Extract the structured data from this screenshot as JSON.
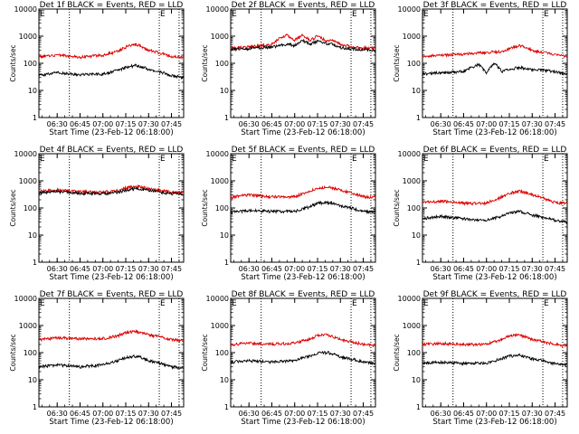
{
  "figure": {
    "black_color": "#000000",
    "red_color": "#dd0000",
    "common": {
      "ylabel": "Counts/sec",
      "xlabel": "Start Time (23-Feb-12 06:18:00)",
      "x_ticks": [
        "06:30",
        "06:45",
        "07:00",
        "07:15",
        "07:30",
        "07:45"
      ],
      "y_ticks": [
        "1",
        "10",
        "100",
        "1000",
        "10000"
      ],
      "marker_label": "E"
    }
  },
  "chart_data": [
    {
      "type": "line",
      "title": "Det 1f BLACK = Events, RED = LLD",
      "xlabel": "Start Time (23-Feb-12 06:18:00)",
      "ylabel": "Counts/sec",
      "x_range": [
        "06:18",
        "07:53"
      ],
      "ylim": [
        1,
        10000
      ],
      "y_scale": "log",
      "vlines": [
        "06:38",
        "07:37",
        "07:50"
      ],
      "series": [
        {
          "role": "events",
          "color": "#000000",
          "x": [
            "06:18",
            "06:30",
            "06:45",
            "07:00",
            "07:10",
            "07:15",
            "07:22",
            "07:30",
            "07:45",
            "07:53"
          ],
          "values": [
            35,
            45,
            38,
            40,
            55,
            70,
            85,
            60,
            35,
            30
          ]
        },
        {
          "role": "lld",
          "color": "#dd0000",
          "x": [
            "06:18",
            "06:30",
            "06:45",
            "07:00",
            "07:10",
            "07:15",
            "07:22",
            "07:30",
            "07:45",
            "07:53"
          ],
          "values": [
            170,
            200,
            170,
            200,
            280,
            400,
            500,
            300,
            180,
            160
          ]
        }
      ]
    },
    {
      "type": "line",
      "title": "Det 2f BLACK = Events, RED = LLD",
      "xlabel": "Start Time (23-Feb-12 06:18:00)",
      "ylabel": "Counts/sec",
      "x_range": [
        "06:18",
        "07:53"
      ],
      "ylim": [
        1,
        10000
      ],
      "y_scale": "log",
      "vlines": [
        "06:38",
        "07:37",
        "07:50"
      ],
      "series": [
        {
          "role": "events",
          "color": "#000000",
          "x": [
            "06:18",
            "06:30",
            "06:45",
            "06:55",
            "07:00",
            "07:05",
            "07:10",
            "07:15",
            "07:20",
            "07:25",
            "07:30",
            "07:40",
            "07:53"
          ],
          "values": [
            320,
            350,
            400,
            500,
            450,
            700,
            500,
            650,
            550,
            500,
            380,
            330,
            300
          ]
        },
        {
          "role": "lld",
          "color": "#dd0000",
          "x": [
            "06:18",
            "06:30",
            "06:45",
            "06:55",
            "07:00",
            "07:05",
            "07:10",
            "07:15",
            "07:20",
            "07:25",
            "07:30",
            "07:40",
            "07:53"
          ],
          "values": [
            360,
            400,
            500,
            1100,
            700,
            1100,
            700,
            1000,
            700,
            700,
            500,
            380,
            360
          ]
        }
      ]
    },
    {
      "type": "line",
      "title": "Det 3f BLACK = Events, RED = LLD",
      "xlabel": "Start Time (23-Feb-12 06:18:00)",
      "ylabel": "Counts/sec",
      "x_range": [
        "06:18",
        "07:53"
      ],
      "ylim": [
        1,
        10000
      ],
      "y_scale": "log",
      "vlines": [
        "06:38",
        "07:37",
        "07:50"
      ],
      "series": [
        {
          "role": "events",
          "color": "#000000",
          "x": [
            "06:18",
            "06:30",
            "06:45",
            "06:55",
            "07:00",
            "07:05",
            "07:10",
            "07:15",
            "07:22",
            "07:30",
            "07:45",
            "07:53"
          ],
          "values": [
            40,
            45,
            50,
            90,
            40,
            100,
            50,
            60,
            70,
            60,
            50,
            40
          ]
        },
        {
          "role": "lld",
          "color": "#dd0000",
          "x": [
            "06:18",
            "06:30",
            "06:45",
            "06:55",
            "07:00",
            "07:05",
            "07:10",
            "07:15",
            "07:22",
            "07:30",
            "07:45",
            "07:53"
          ],
          "values": [
            180,
            200,
            220,
            250,
            240,
            270,
            260,
            350,
            450,
            300,
            200,
            180
          ]
        }
      ]
    },
    {
      "type": "line",
      "title": "Det 4f BLACK = Events, RED = LLD",
      "xlabel": "Start Time (23-Feb-12 06:18:00)",
      "ylabel": "Counts/sec",
      "x_range": [
        "06:18",
        "07:53"
      ],
      "ylim": [
        1,
        10000
      ],
      "y_scale": "log",
      "vlines": [
        "06:38",
        "07:37",
        "07:50"
      ],
      "series": [
        {
          "role": "events",
          "color": "#000000",
          "x": [
            "06:18",
            "06:30",
            "06:45",
            "07:00",
            "07:10",
            "07:15",
            "07:22",
            "07:30",
            "07:45",
            "07:53"
          ],
          "values": [
            360,
            400,
            350,
            330,
            380,
            450,
            520,
            450,
            340,
            330
          ]
        },
        {
          "role": "lld",
          "color": "#dd0000",
          "x": [
            "06:18",
            "06:30",
            "06:45",
            "07:00",
            "07:10",
            "07:15",
            "07:22",
            "07:30",
            "07:45",
            "07:53"
          ],
          "values": [
            400,
            460,
            400,
            380,
            450,
            550,
            650,
            520,
            380,
            370
          ]
        }
      ]
    },
    {
      "type": "line",
      "title": "Det 5f BLACK = Events, RED = LLD",
      "xlabel": "Start Time (23-Feb-12 06:18:00)",
      "ylabel": "Counts/sec",
      "x_range": [
        "06:18",
        "07:53"
      ],
      "ylim": [
        1,
        10000
      ],
      "y_scale": "log",
      "vlines": [
        "06:38",
        "07:37",
        "07:50"
      ],
      "series": [
        {
          "role": "events",
          "color": "#000000",
          "x": [
            "06:18",
            "06:30",
            "06:45",
            "07:00",
            "07:10",
            "07:15",
            "07:22",
            "07:30",
            "07:45",
            "07:53"
          ],
          "values": [
            70,
            80,
            75,
            75,
            110,
            150,
            160,
            120,
            75,
            70
          ]
        },
        {
          "role": "lld",
          "color": "#dd0000",
          "x": [
            "06:18",
            "06:30",
            "06:45",
            "07:00",
            "07:10",
            "07:15",
            "07:22",
            "07:30",
            "07:45",
            "07:53"
          ],
          "values": [
            250,
            300,
            260,
            260,
            400,
            550,
            600,
            450,
            260,
            250
          ]
        }
      ]
    },
    {
      "type": "line",
      "title": "Det 6f BLACK = Events, RED = LLD",
      "xlabel": "Start Time (23-Feb-12 06:18:00)",
      "ylabel": "Counts/sec",
      "x_range": [
        "06:18",
        "07:53"
      ],
      "ylim": [
        1,
        10000
      ],
      "y_scale": "log",
      "vlines": [
        "06:38",
        "07:37",
        "07:50"
      ],
      "series": [
        {
          "role": "events",
          "color": "#000000",
          "x": [
            "06:18",
            "06:30",
            "06:45",
            "07:00",
            "07:10",
            "07:15",
            "07:22",
            "07:30",
            "07:45",
            "07:53"
          ],
          "values": [
            40,
            50,
            40,
            35,
            50,
            65,
            75,
            55,
            35,
            30
          ]
        },
        {
          "role": "lld",
          "color": "#dd0000",
          "x": [
            "06:18",
            "06:30",
            "06:45",
            "07:00",
            "07:10",
            "07:15",
            "07:22",
            "07:30",
            "07:45",
            "07:53"
          ],
          "values": [
            160,
            180,
            150,
            150,
            250,
            350,
            420,
            300,
            160,
            150
          ]
        }
      ]
    },
    {
      "type": "line",
      "title": "Det 7f BLACK = Events, RED = LLD",
      "xlabel": "Start Time (23-Feb-12 06:18:00)",
      "ylabel": "Counts/sec",
      "x_range": [
        "06:18",
        "07:53"
      ],
      "ylim": [
        1,
        10000
      ],
      "y_scale": "log",
      "vlines": [
        "06:38",
        "07:37",
        "07:50"
      ],
      "series": [
        {
          "role": "events",
          "color": "#000000",
          "x": [
            "06:18",
            "06:30",
            "06:45",
            "07:00",
            "07:10",
            "07:15",
            "07:22",
            "07:30",
            "07:45",
            "07:53"
          ],
          "values": [
            30,
            35,
            30,
            35,
            50,
            65,
            75,
            50,
            30,
            28
          ]
        },
        {
          "role": "lld",
          "color": "#dd0000",
          "x": [
            "06:18",
            "06:30",
            "06:45",
            "07:00",
            "07:10",
            "07:15",
            "07:22",
            "07:30",
            "07:45",
            "07:53"
          ],
          "values": [
            300,
            350,
            320,
            330,
            420,
            550,
            600,
            450,
            300,
            280
          ]
        }
      ]
    },
    {
      "type": "line",
      "title": "Det 8f BLACK = Events, RED = LLD",
      "xlabel": "Start Time (23-Feb-12 06:18:00)",
      "ylabel": "Counts/sec",
      "x_range": [
        "06:18",
        "07:53"
      ],
      "ylim": [
        1,
        10000
      ],
      "y_scale": "log",
      "vlines": [
        "06:38",
        "07:37",
        "07:50"
      ],
      "series": [
        {
          "role": "events",
          "color": "#000000",
          "x": [
            "06:18",
            "06:30",
            "06:45",
            "07:00",
            "07:10",
            "07:15",
            "07:22",
            "07:30",
            "07:45",
            "07:53"
          ],
          "values": [
            45,
            50,
            45,
            50,
            75,
            95,
            100,
            70,
            45,
            40
          ]
        },
        {
          "role": "lld",
          "color": "#dd0000",
          "x": [
            "06:18",
            "06:30",
            "06:45",
            "07:00",
            "07:10",
            "07:15",
            "07:22",
            "07:30",
            "07:45",
            "07:53"
          ],
          "values": [
            200,
            220,
            210,
            220,
            320,
            430,
            450,
            300,
            200,
            180
          ]
        }
      ]
    },
    {
      "type": "line",
      "title": "Det 9f BLACK = Events, RED = LLD",
      "xlabel": "Start Time (23-Feb-12 06:18:00)",
      "ylabel": "Counts/sec",
      "x_range": [
        "06:18",
        "07:53"
      ],
      "ylim": [
        1,
        10000
      ],
      "y_scale": "log",
      "vlines": [
        "06:38",
        "07:37",
        "07:50"
      ],
      "series": [
        {
          "role": "events",
          "color": "#000000",
          "x": [
            "06:18",
            "06:30",
            "06:45",
            "07:00",
            "07:10",
            "07:15",
            "07:22",
            "07:30",
            "07:45",
            "07:53"
          ],
          "values": [
            40,
            45,
            40,
            40,
            60,
            75,
            80,
            60,
            40,
            35
          ]
        },
        {
          "role": "lld",
          "color": "#dd0000",
          "x": [
            "06:18",
            "06:30",
            "06:45",
            "07:00",
            "07:10",
            "07:15",
            "07:22",
            "07:30",
            "07:45",
            "07:53"
          ],
          "values": [
            200,
            220,
            200,
            200,
            300,
            420,
            450,
            300,
            200,
            180
          ]
        }
      ]
    }
  ]
}
